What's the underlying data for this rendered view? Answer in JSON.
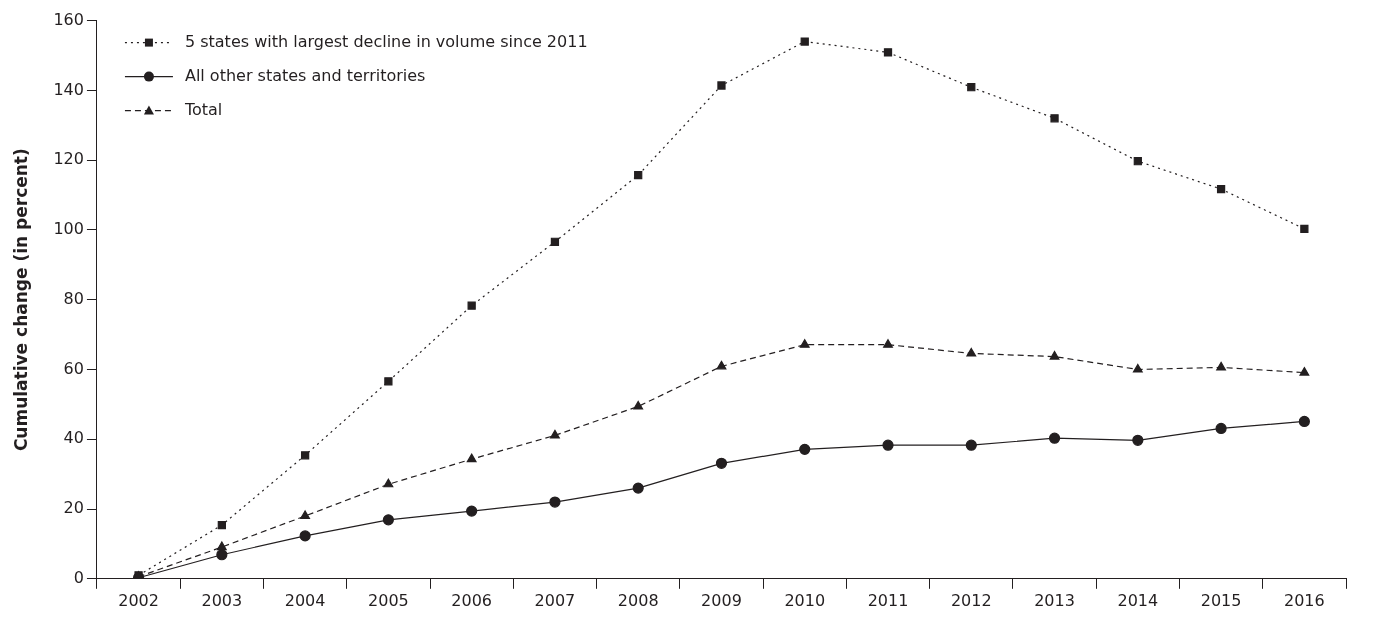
{
  "chart_data": {
    "type": "line",
    "ylabel": "Cumulative change (in percent)",
    "categories": [
      "2002",
      "2003",
      "2004",
      "2005",
      "2006",
      "2007",
      "2008",
      "2009",
      "2010",
      "2011",
      "2012",
      "2013",
      "2014",
      "2015",
      "2016"
    ],
    "series": [
      {
        "name": "5 states with largest decline in volume since 2011",
        "color": "#231f20",
        "marker": "square",
        "line_style": "dotted",
        "values": [
          1,
          15.4,
          35.4,
          56.6,
          78.3,
          96.6,
          115.7,
          141.4,
          154,
          150.9,
          140.9,
          132,
          119.7,
          111.7,
          100.3
        ]
      },
      {
        "name": "All other states and territories",
        "color": "#231f20",
        "marker": "circle",
        "line_style": "solid",
        "values": [
          0.3,
          6.9,
          12.3,
          16.9,
          19.4,
          22,
          26,
          33.1,
          37.1,
          38.3,
          38.3,
          40.3,
          39.7,
          43.1,
          45.1
        ]
      },
      {
        "name": "Total",
        "color": "#231f20",
        "marker": "triangle",
        "line_style": "dashed",
        "values": [
          0.6,
          9.1,
          18,
          27.1,
          34.3,
          41.1,
          49.4,
          60.9,
          67.1,
          67.1,
          64.6,
          63.7,
          60,
          60.6,
          59.1
        ]
      }
    ],
    "ylim": [
      0,
      160
    ],
    "yticks": [
      0,
      20,
      40,
      60,
      80,
      100,
      120,
      140,
      160
    ],
    "grid": false,
    "legend": "top left"
  }
}
